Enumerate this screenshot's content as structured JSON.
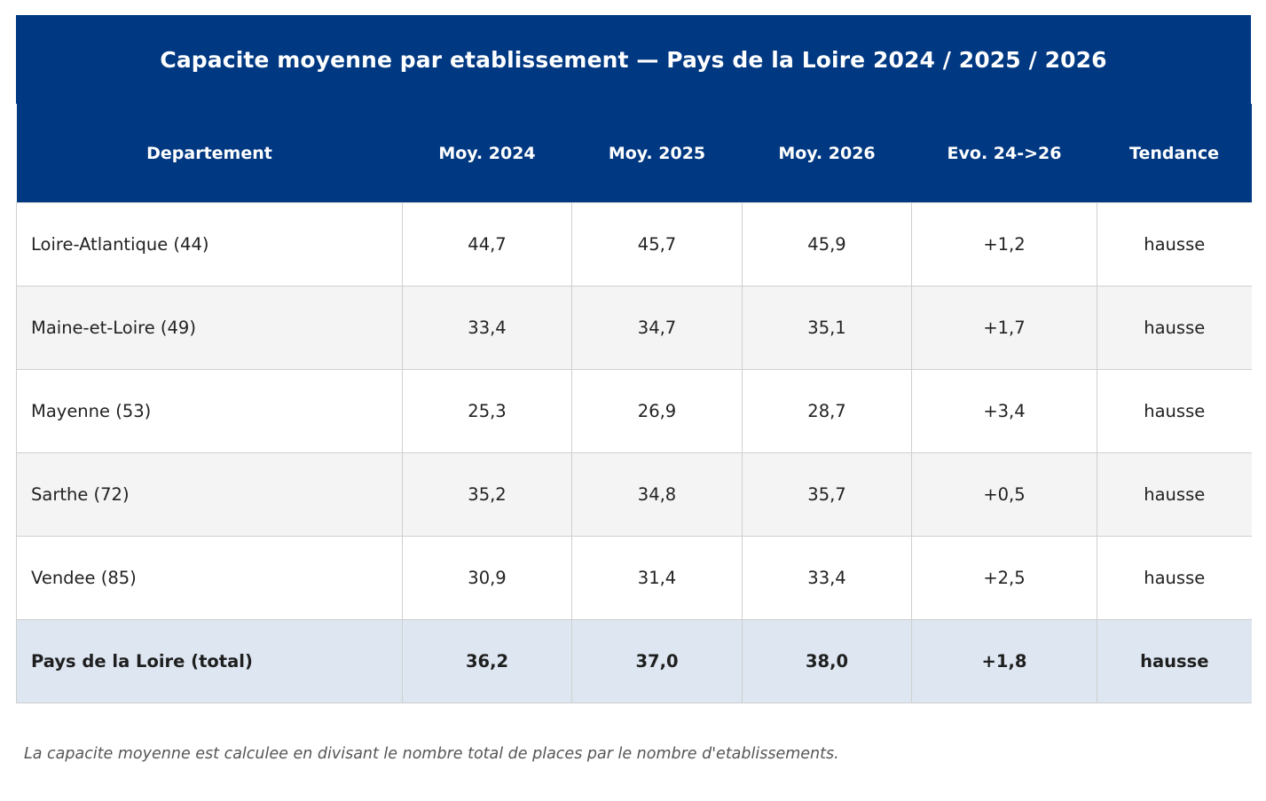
{
  "colors": {
    "header_bg": "#003882",
    "header_text": "#ffffff",
    "row_alt_bg": "#f4f4f4",
    "total_bg": "#dde6f1",
    "grid_line": "#cfcfcf"
  },
  "chart_data": {
    "type": "table",
    "title": "Capacite moyenne par etablissement — Pays de la Loire 2024 / 2025 / 2026",
    "columns": [
      "Departement",
      "Moy. 2024",
      "Moy. 2025",
      "Moy. 2026",
      "Evo. 24->26",
      "Tendance"
    ],
    "rows": [
      [
        "Loire-Atlantique (44)",
        "44,7",
        "45,7",
        "45,9",
        "+1,2",
        "hausse"
      ],
      [
        "Maine-et-Loire (49)",
        "33,4",
        "34,7",
        "35,1",
        "+1,7",
        "hausse"
      ],
      [
        "Mayenne (53)",
        "25,3",
        "26,9",
        "28,7",
        "+3,4",
        "hausse"
      ],
      [
        "Sarthe (72)",
        "35,2",
        "34,8",
        "35,7",
        "+0,5",
        "hausse"
      ],
      [
        "Vendee (85)",
        "30,9",
        "31,4",
        "33,4",
        "+2,5",
        "hausse"
      ]
    ],
    "total_row": [
      "Pays de la Loire (total)",
      "36,2",
      "37,0",
      "38,0",
      "+1,8",
      "hausse"
    ],
    "footnote": "La capacite moyenne est calculee en divisant le nombre total de places par le nombre d'etablissements."
  }
}
